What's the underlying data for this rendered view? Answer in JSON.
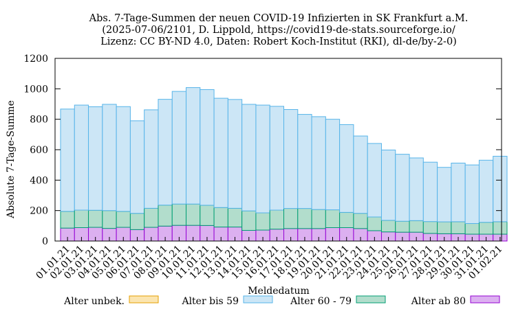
{
  "chart_data": {
    "type": "bar",
    "stacked": true,
    "title_lines": [
      "Abs. 7-Tage-Summen der neuen COVID-19 Infizierten in SK Frankfurt a.M.",
      "(2025-07-06/2101, D. Lippold, https://covid19-de-stats.sourceforge.io/",
      "Lizenz: CC BY-ND 4.0, Daten: Robert Koch-Institut (RKI), dl-de/by-2-0)"
    ],
    "xlabel": "Meldedatum",
    "ylabel": "Absolute 7-Tage-Summe",
    "ylim": [
      0,
      1200
    ],
    "yticks": [
      0,
      200,
      400,
      600,
      800,
      1000,
      1200
    ],
    "categories": [
      "01.01.21",
      "02.01.21",
      "03.01.21",
      "04.01.21",
      "05.01.21",
      "06.01.21",
      "07.01.21",
      "08.01.21",
      "09.01.21",
      "10.01.21",
      "11.01.21",
      "12.01.21",
      "13.01.21",
      "14.01.21",
      "15.01.21",
      "16.01.21",
      "17.01.21",
      "18.01.21",
      "19.01.21",
      "20.01.21",
      "21.01.21",
      "22.01.21",
      "23.01.21",
      "24.01.21",
      "25.01.21",
      "26.01.21",
      "27.01.21",
      "28.01.21",
      "29.01.21",
      "30.01.21",
      "31.01.21",
      "01.02.21"
    ],
    "series": [
      {
        "name": "Alter ab 80",
        "fill": "#dcb0f0",
        "stroke": "#9400d3",
        "values": [
          85,
          88,
          90,
          83,
          90,
          75,
          90,
          98,
          103,
          103,
          102,
          92,
          92,
          70,
          72,
          78,
          82,
          82,
          82,
          88,
          88,
          82,
          68,
          60,
          58,
          58,
          50,
          48,
          48,
          45,
          45,
          45
        ]
      },
      {
        "name": "Alter 60 - 79",
        "fill": "#b2ddcc",
        "stroke": "#009e73",
        "values": [
          110,
          115,
          112,
          117,
          105,
          107,
          125,
          138,
          140,
          140,
          133,
          128,
          123,
          128,
          113,
          125,
          132,
          132,
          125,
          117,
          100,
          100,
          90,
          76,
          72,
          76,
          78,
          78,
          79,
          70,
          78,
          82
        ]
      },
      {
        "name": "Alter bis 59",
        "fill": "#cce6f6",
        "stroke": "#56b4e9",
        "values": [
          672,
          690,
          680,
          698,
          688,
          608,
          647,
          695,
          740,
          765,
          760,
          718,
          715,
          700,
          708,
          682,
          650,
          618,
          610,
          595,
          577,
          508,
          483,
          462,
          440,
          412,
          390,
          358,
          385,
          385,
          408,
          430
        ]
      },
      {
        "name": "Alter unbek.",
        "fill": "#fbe5b0",
        "stroke": "#e69f00",
        "values": [
          0,
          0,
          0,
          0,
          0,
          0,
          0,
          0,
          0,
          0,
          0,
          0,
          0,
          0,
          0,
          0,
          0,
          0,
          0,
          0,
          0,
          0,
          0,
          0,
          0,
          0,
          0,
          0,
          0,
          0,
          0,
          0
        ]
      }
    ],
    "legend": [
      "Alter unbek.",
      "Alter bis 59",
      "Alter 60 - 79",
      "Alter ab 80"
    ],
    "legend_position": "bottom"
  }
}
